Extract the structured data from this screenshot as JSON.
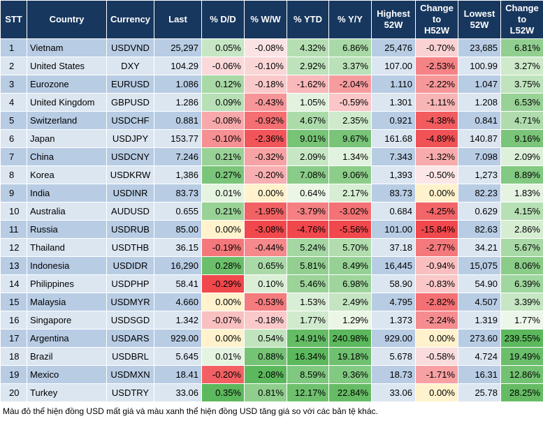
{
  "table": {
    "header": [
      "STT",
      "Country",
      "Currency",
      "Last",
      "% D/D",
      "% W/W",
      "% YTD",
      "% Y/Y",
      "Highest\n52W",
      "Change\nto\nH52W",
      "Lowest\n52W",
      "Change\nto\nL52W"
    ],
    "rows": [
      [
        "1",
        "Vietnam",
        "USDVND",
        "25,297",
        "0.05%",
        "-0.08%",
        "4.32%",
        "6.86%",
        "25,476",
        "-0.70%",
        "23,685",
        "6.81%"
      ],
      [
        "2",
        "United States",
        "DXY",
        "104.29",
        "-0.06%",
        "-0.10%",
        "2.92%",
        "3.37%",
        "107.00",
        "-2.53%",
        "100.99",
        "3.27%"
      ],
      [
        "3",
        "Eurozone",
        "EURUSD",
        "1.086",
        "0.12%",
        "-0.18%",
        "-1.62%",
        "-2.04%",
        "1.110",
        "-2.22%",
        "1.047",
        "3.75%"
      ],
      [
        "4",
        "United Kingdom",
        "GBPUSD",
        "1.286",
        "0.09%",
        "-0.43%",
        "1.05%",
        "-0.59%",
        "1.301",
        "-1.11%",
        "1.208",
        "6.53%"
      ],
      [
        "5",
        "Switzerland",
        "USDCHF",
        "0.881",
        "-0.08%",
        "-0.92%",
        "4.67%",
        "2.35%",
        "0.921",
        "-4.38%",
        "0.841",
        "4.71%"
      ],
      [
        "6",
        "Japan",
        "USDJPY",
        "153.77",
        "-0.10%",
        "-2.36%",
        "9.01%",
        "9.67%",
        "161.68",
        "-4.89%",
        "140.87",
        "9.16%"
      ],
      [
        "7",
        "China",
        "USDCNY",
        "7.246",
        "0.21%",
        "-0.32%",
        "2.09%",
        "1.34%",
        "7.343",
        "-1.32%",
        "7.098",
        "2.09%"
      ],
      [
        "8",
        "Korea",
        "USDKRW",
        "1,386",
        "0.27%",
        "-0.20%",
        "7.08%",
        "9.06%",
        "1,393",
        "-0.50%",
        "1,273",
        "8.89%"
      ],
      [
        "9",
        "India",
        "USDINR",
        "83.73",
        "0.01%",
        "0.00%",
        "0.64%",
        "2.17%",
        "83.73",
        "0.00%",
        "82.23",
        "1.83%"
      ],
      [
        "10",
        "Australia",
        "AUDUSD",
        "0.655",
        "0.21%",
        "-1.95%",
        "-3.79%",
        "-3.02%",
        "0.684",
        "-4.25%",
        "0.629",
        "4.15%"
      ],
      [
        "11",
        "Russia",
        "USDRUB",
        "85.00",
        "0.00%",
        "-3.08%",
        "-4.76%",
        "-5.56%",
        "101.00",
        "-15.84%",
        "82.63",
        "2.86%"
      ],
      [
        "12",
        "Thailand",
        "USDTHB",
        "36.15",
        "-0.19%",
        "-0.44%",
        "5.24%",
        "5.70%",
        "37.18",
        "-2.77%",
        "34.21",
        "5.67%"
      ],
      [
        "13",
        "Indonesia",
        "USDIDR",
        "16,290",
        "0.28%",
        "0.65%",
        "5.81%",
        "8.49%",
        "16,445",
        "-0.94%",
        "15,075",
        "8.06%"
      ],
      [
        "14",
        "Philippines",
        "USDPHP",
        "58.41",
        "-0.29%",
        "0.10%",
        "5.46%",
        "6.98%",
        "58.90",
        "-0.83%",
        "54.90",
        "6.39%"
      ],
      [
        "15",
        "Malaysia",
        "USDMYR",
        "4.660",
        "0.00%",
        "-0.53%",
        "1.53%",
        "2.49%",
        "4.795",
        "-2.82%",
        "4.507",
        "3.39%"
      ],
      [
        "16",
        "Singapore",
        "USDSGD",
        "1.342",
        "-0.07%",
        "-0.18%",
        "1.77%",
        "1.29%",
        "1.373",
        "-2.24%",
        "1.319",
        "1.77%"
      ],
      [
        "17",
        "Argentina",
        "USDARS",
        "929.00",
        "0.00%",
        "0.54%",
        "14.91%",
        "240.98%",
        "929.00",
        "0.00%",
        "273.60",
        "239.55%"
      ],
      [
        "18",
        "Brazil",
        "USDBRL",
        "5.645",
        "0.01%",
        "0.88%",
        "16.34%",
        "19.18%",
        "5.678",
        "-0.58%",
        "4.724",
        "19.49%"
      ],
      [
        "19",
        "Mexico",
        "USDMXN",
        "18.41",
        "-0.20%",
        "2.08%",
        "8.59%",
        "9.36%",
        "18.73",
        "-1.71%",
        "16.31",
        "12.86%"
      ],
      [
        "20",
        "Turkey",
        "USDTRY",
        "33.06",
        "0.35%",
        "0.81%",
        "12.17%",
        "22.84%",
        "33.06",
        "0.00%",
        "25.78",
        "28.25%"
      ]
    ]
  },
  "footer": "Màu đỏ thể hiện đồng USD mất giá và màu xanh thể hiện đồng USD tăng giá so với các bản tệ khác."
}
